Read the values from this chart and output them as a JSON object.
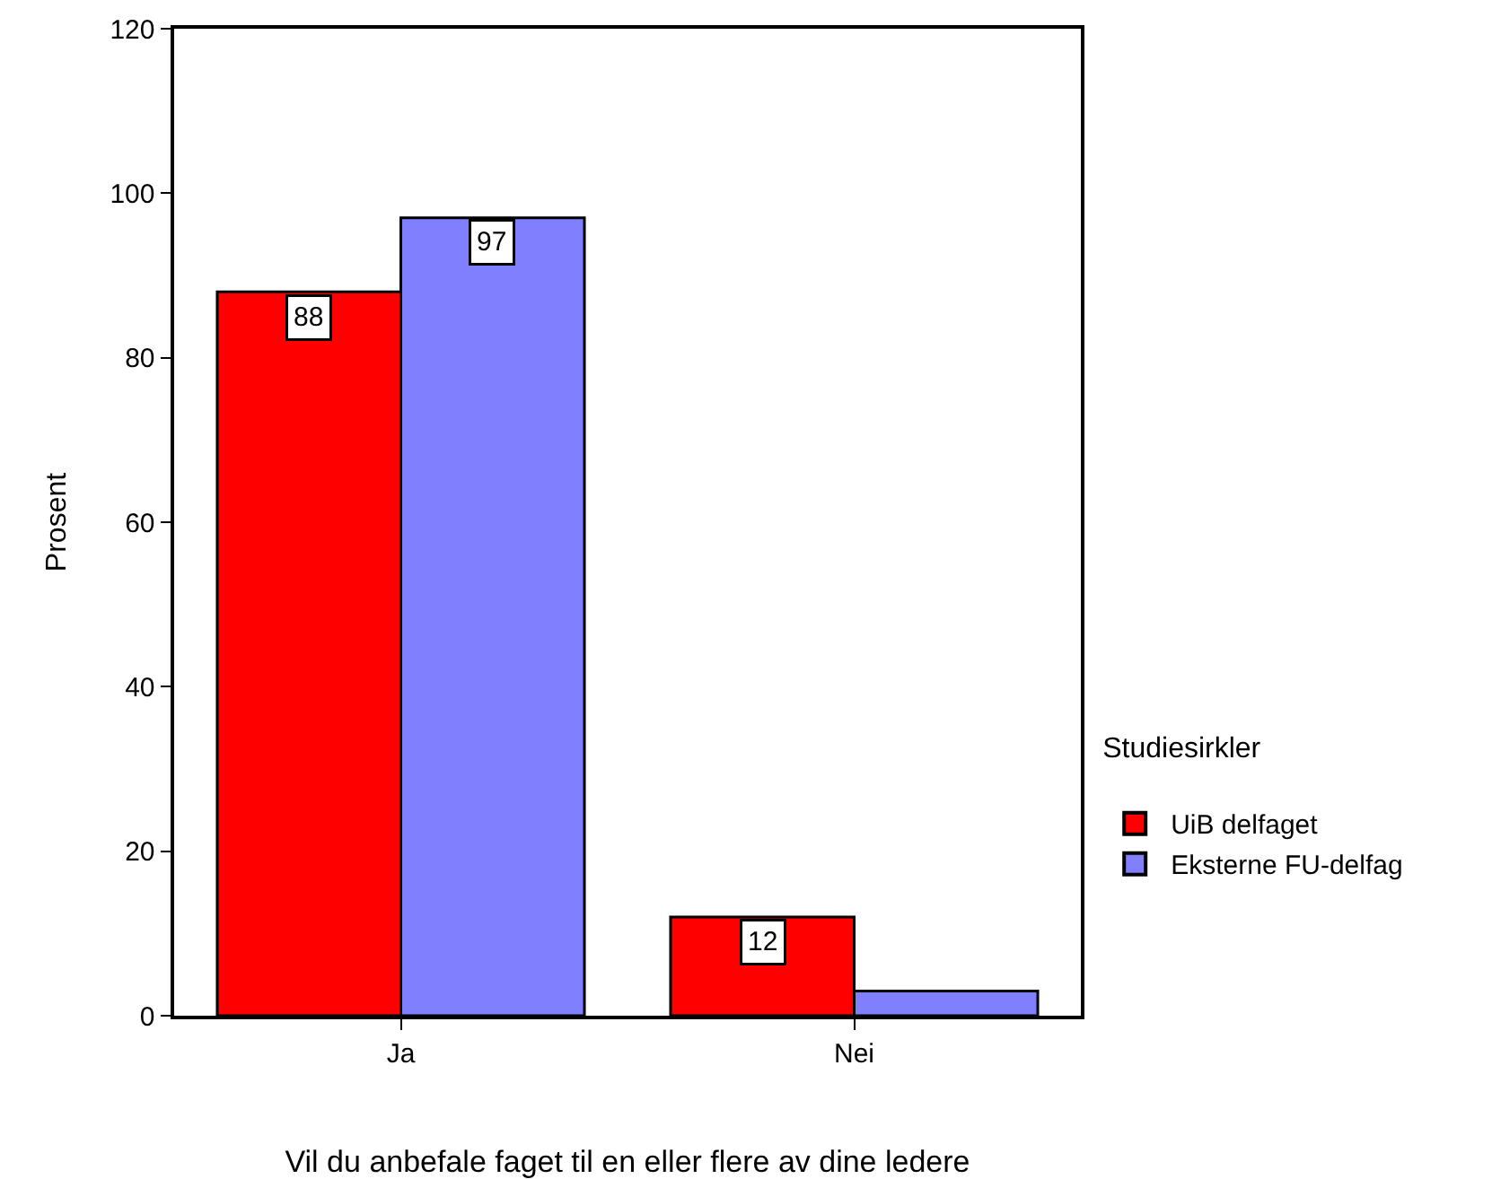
{
  "chart_data": {
    "type": "bar",
    "xlabel": "Vil du anbefale faget til en eller flere av dine ledere",
    "ylabel": "Prosent",
    "legend_title": "Studiesirkler",
    "categories": [
      "Ja",
      "Nei"
    ],
    "series": [
      {
        "name": "UiB delfaget",
        "color": "#ff0000",
        "values": [
          88,
          12
        ],
        "value_labels": [
          "88",
          "12"
        ]
      },
      {
        "name": "Eksterne FU-delfag",
        "color": "#8080ff",
        "values": [
          97,
          3
        ],
        "value_labels": [
          "97",
          null
        ]
      }
    ],
    "ylim": [
      0,
      120
    ],
    "yticks": [
      0,
      20,
      40,
      60,
      80,
      100,
      120
    ],
    "grid": false,
    "legend": "right"
  }
}
